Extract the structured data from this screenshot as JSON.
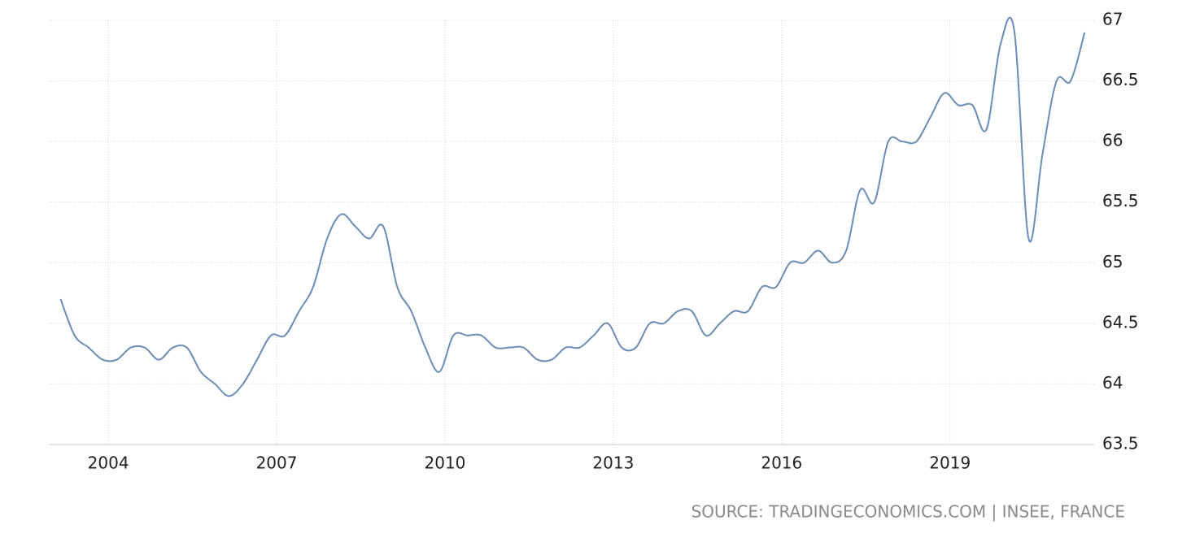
{
  "chart_data": {
    "type": "line",
    "source": "SOURCE: TRADINGECONOMICS.COM | INSEE, FRANCE",
    "x": [
      2003.15,
      2003.4,
      2003.65,
      2003.9,
      2004.15,
      2004.4,
      2004.65,
      2004.9,
      2005.15,
      2005.4,
      2005.65,
      2005.9,
      2006.15,
      2006.4,
      2006.65,
      2006.9,
      2007.15,
      2007.4,
      2007.65,
      2007.9,
      2008.15,
      2008.4,
      2008.65,
      2008.9,
      2009.15,
      2009.4,
      2009.65,
      2009.9,
      2010.15,
      2010.4,
      2010.65,
      2010.9,
      2011.15,
      2011.4,
      2011.65,
      2011.9,
      2012.15,
      2012.4,
      2012.65,
      2012.9,
      2013.15,
      2013.4,
      2013.65,
      2013.9,
      2014.15,
      2014.4,
      2014.65,
      2014.9,
      2015.15,
      2015.4,
      2015.65,
      2015.9,
      2016.15,
      2016.4,
      2016.65,
      2016.9,
      2017.15,
      2017.4,
      2017.65,
      2017.9,
      2018.15,
      2018.4,
      2018.65,
      2018.9,
      2019.15,
      2019.4,
      2019.65,
      2019.9,
      2020.15,
      2020.4,
      2020.65,
      2020.9,
      2021.15,
      2021.4
    ],
    "series": [
      {
        "color": "#6b8db5",
        "values": [
          64.7,
          64.4,
          64.3,
          64.2,
          64.2,
          64.3,
          64.3,
          64.2,
          64.3,
          64.3,
          64.1,
          64.0,
          63.9,
          64.0,
          64.2,
          64.4,
          64.4,
          64.6,
          64.8,
          65.2,
          65.4,
          65.3,
          65.2,
          65.3,
          64.8,
          64.6,
          64.3,
          64.1,
          64.4,
          64.4,
          64.4,
          64.3,
          64.3,
          64.3,
          64.2,
          64.2,
          64.3,
          64.3,
          64.4,
          64.5,
          64.3,
          64.3,
          64.5,
          64.5,
          64.6,
          64.6,
          64.4,
          64.5,
          64.6,
          64.6,
          64.8,
          64.8,
          65.0,
          65.0,
          65.1,
          65.0,
          65.1,
          65.6,
          65.5,
          66.0,
          66.0,
          66.0,
          66.2,
          66.4,
          66.3,
          66.3,
          66.1,
          66.8,
          66.9,
          65.2,
          65.9,
          66.5,
          66.5,
          66.9
        ]
      }
    ],
    "xlim": [
      2002.94,
      2021.57
    ],
    "xticks": [
      2004,
      2007,
      2010,
      2013,
      2016,
      2019
    ],
    "ylim": [
      63.5,
      67
    ],
    "yticks": [
      63.5,
      64,
      64.5,
      65,
      65.5,
      66,
      66.5,
      67
    ],
    "grid": true
  }
}
